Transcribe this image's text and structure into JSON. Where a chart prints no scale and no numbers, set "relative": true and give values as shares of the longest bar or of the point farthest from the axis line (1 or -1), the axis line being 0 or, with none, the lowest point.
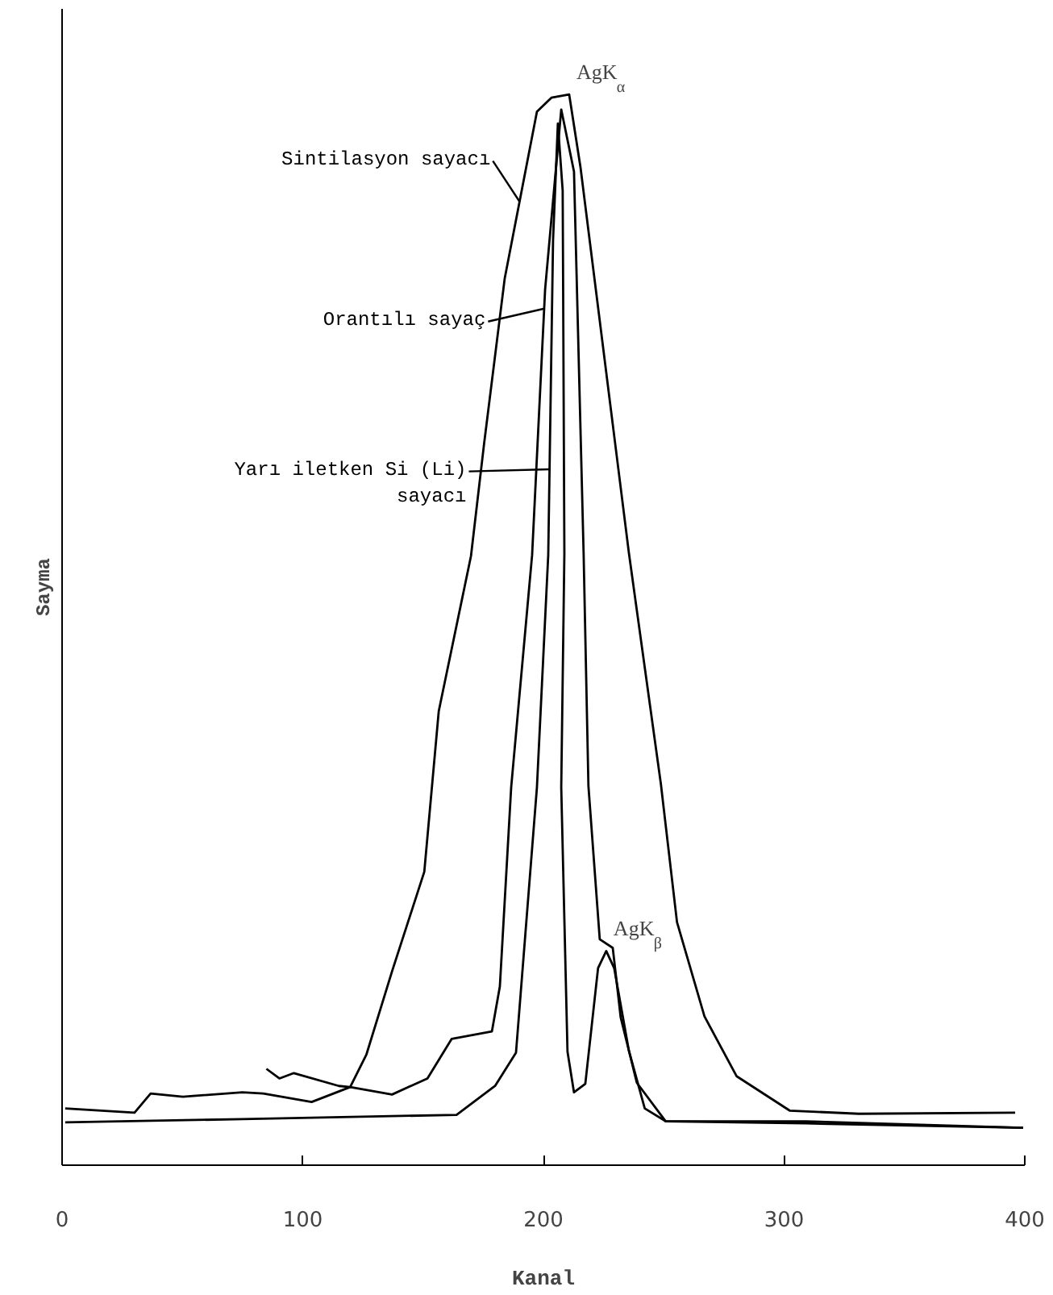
{
  "chart_data": {
    "type": "line",
    "relative": true,
    "xlabel": "Kanal",
    "ylabel": "Sayma",
    "xlim": [
      0,
      400
    ],
    "xticks": [
      0,
      100,
      200,
      300,
      400
    ],
    "tick_labels": "x",
    "grid": false,
    "legend": "left",
    "marker": "none",
    "line_style": "solid",
    "series": [
      {
        "name": "Sintilasyon sayacı",
        "color": "#000000",
        "x": [
          1.3,
          30.1,
          36.8,
          50.2,
          74.9,
          83.6,
          103.7,
          119.7,
          126.4,
          137.1,
          150.5,
          156.5,
          169.9,
          175.3,
          183.9,
          197.3,
          203.3,
          210.7,
          215.4,
          235.5,
          248.8,
          255.5,
          266.9,
          280.3,
          302.3,
          331.1,
          396
        ],
        "values": [
          0.053,
          0.049,
          0.067,
          0.064,
          0.068,
          0.067,
          0.059,
          0.073,
          0.103,
          0.181,
          0.274,
          0.424,
          0.569,
          0.673,
          0.828,
          0.984,
          0.997,
          1.0,
          0.932,
          0.572,
          0.356,
          0.227,
          0.139,
          0.083,
          0.051,
          0.048,
          0.049
        ]
      },
      {
        "name": "Orantılı sayaç",
        "color": "#000000",
        "x": [
          84.9,
          90.3,
          96.3,
          115,
          119.7,
          137.1,
          151.8,
          161.9,
          178.6,
          181.9,
          186.6,
          195.3,
          200.7,
          207.4,
          212.7,
          216.7,
          218.7,
          223.4,
          228.8,
          232.1,
          238.8,
          250.8,
          309,
          399.3
        ],
        "values": [
          0.09,
          0.081,
          0.086,
          0.074,
          0.073,
          0.066,
          0.081,
          0.118,
          0.125,
          0.167,
          0.353,
          0.57,
          0.818,
          0.986,
          0.928,
          0.571,
          0.354,
          0.211,
          0.203,
          0.138,
          0.077,
          0.041,
          0.041,
          0.035
        ]
      },
      {
        "name": "Yarı iletken Si (Li)\nsayacı",
        "color": "#000000",
        "x": [
          1.3,
          74.9,
          163.9,
          179.9,
          188.6,
          197.3,
          202,
          204,
          206,
          208,
          208.7,
          207.4,
          210,
          212.7,
          217.4,
          222.7,
          226.1,
          229.4,
          235.5,
          242.1,
          250.8,
          309,
          399.3
        ],
        "values": [
          0.04,
          0.043,
          0.047,
          0.074,
          0.105,
          0.353,
          0.57,
          0.864,
          0.973,
          0.91,
          0.571,
          0.353,
          0.106,
          0.068,
          0.076,
          0.184,
          0.2,
          0.184,
          0.107,
          0.053,
          0.041,
          0.039,
          0.035
        ]
      }
    ],
    "annotations": [
      {
        "text": "AgK$_{α}$",
        "x": 210.7,
        "y": 1.0
      },
      {
        "text": "AgK$_{β}$",
        "x": 226.1,
        "y": 0.2
      }
    ]
  }
}
